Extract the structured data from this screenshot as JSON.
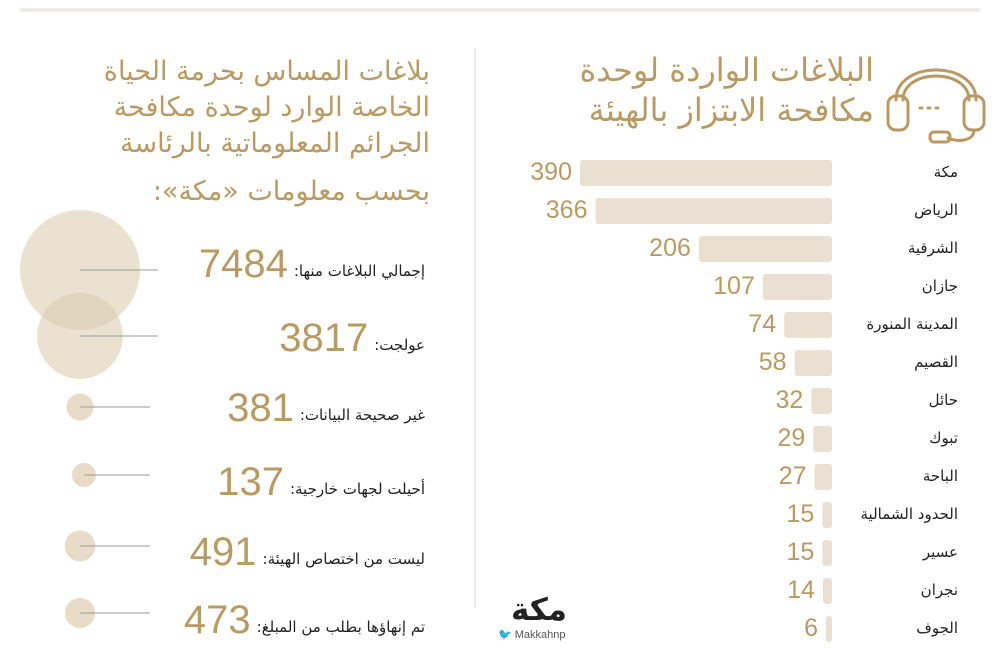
{
  "chart_data": [
    {
      "type": "bar",
      "title_lines": [
        "البلاغات الواردة لوحدة",
        "مكافحة الابتزاز بالهيئة"
      ],
      "categories": [
        "مكة",
        "الرياض",
        "الشرقية",
        "جازان",
        "المدينة المنورة",
        "القصيم",
        "حائل",
        "تبوك",
        "الباحة",
        "الحدود الشمالية",
        "عسير",
        "نجران",
        "الجوف"
      ],
      "values": [
        390,
        366,
        206,
        107,
        74,
        58,
        32,
        29,
        27,
        15,
        15,
        14,
        6
      ],
      "orientation": "horizontal"
    },
    {
      "type": "bubble",
      "title_lines": [
        "بلاغات المساس بحرمة الحياة",
        "الخاصة الوارد لوحدة مكافحة",
        "الجرائم المعلوماتية بالرئاسة",
        "بحسب معلومات «مكة»:"
      ],
      "items": [
        {
          "label": "إجمالي البلاغات منها:",
          "value": 7484
        },
        {
          "label": "عولجت:",
          "value": 3817
        },
        {
          "label": "غير صحيحة البيانات:",
          "value": 381
        },
        {
          "label": "أحيلت لجهات خارجية:",
          "value": 137
        },
        {
          "label": "ليست من اختصاص الهيئة:",
          "value": 491
        },
        {
          "label": "تم إنهاؤها بطلب من المبلغ:",
          "value": 473
        }
      ]
    }
  ],
  "logo": {
    "text": "مكة",
    "handle": "Makkahnp",
    "handle_icon": "twitter-bird-icon"
  },
  "colors": {
    "accent": "#b89a62",
    "bar": "#eae0d2",
    "bubble": "#e8dcc9",
    "bubble_overlap": "#c4ac84",
    "text": "#1f1f1f"
  }
}
